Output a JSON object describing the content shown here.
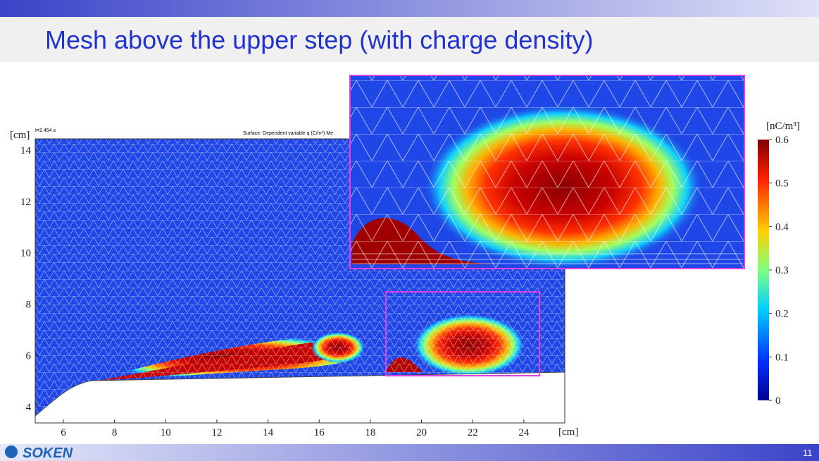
{
  "header": {
    "title": "Mesh above the upper step (with charge density)"
  },
  "plot": {
    "time_label": "t=2.454 s",
    "surface_label": "Surface: Dependent variable q (C/m³) Me",
    "y_unit": "[cm]",
    "x_unit": "[cm]",
    "xlim": [
      4.9,
      25.6
    ],
    "ylim": [
      3.37,
      14.44
    ],
    "xticks": [
      6,
      8,
      10,
      12,
      14,
      16,
      18,
      20,
      22,
      24
    ],
    "yticks": [
      4,
      6,
      8,
      10,
      12,
      14
    ]
  },
  "colorbar": {
    "unit": "[nC/m³]",
    "lim": [
      0,
      0.6
    ],
    "ticks": [
      0,
      0.1,
      0.2,
      0.3,
      0.4,
      0.5,
      0.6
    ]
  },
  "footer": {
    "logo": "SOKEN",
    "page": "11"
  }
}
